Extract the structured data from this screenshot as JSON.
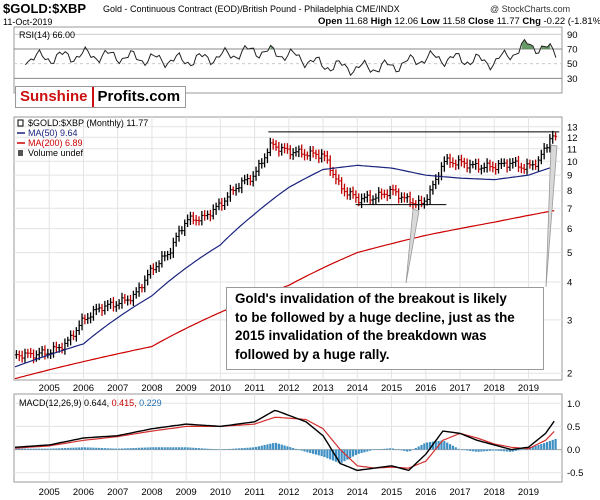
{
  "header": {
    "symbol": "$GOLD:$XBP",
    "description": "Gold - Continuous Contract (EOD)/British Pound - Philadelphia CME/INDX",
    "date": "11-Oct-2019",
    "credit": "@ StockCharts.com",
    "open_label": "Open",
    "open": "11.68",
    "high_label": "High",
    "high": "12.06",
    "low_label": "Low",
    "low": "11.58",
    "close_label": "Close",
    "close": "11.77",
    "chg_label": "Chg",
    "chg": "-0.22 (-1.81%)",
    "chg_arrow": "▼"
  },
  "logo": {
    "part1": "Sunshine",
    "part2": "Profits.com"
  },
  "annotation": {
    "lines": [
      "Gold's invalidation of the breakout is likely",
      "to be followed by a huge decline, just as the",
      "2015 invalidation of the breakdown was",
      "followed by a huge rally."
    ]
  },
  "colors": {
    "price_bar": "#000000",
    "ma50": "#1a237e",
    "ma200": "#cc0000",
    "rsi_fill": "#4e8a4e",
    "macd_hist": "#3d8fc4",
    "macd_signal": "#d32f2f"
  },
  "chart_data": [
    {
      "type": "line",
      "title": "RSI(14) 66.00",
      "series_label": "RSI(14)",
      "series_value": "66.00",
      "yticks": [
        "90",
        "70",
        "50",
        "30"
      ],
      "ylim": [
        10,
        100
      ],
      "x": [
        2005,
        2006,
        2007,
        2008,
        2009,
        2010,
        2011,
        2012,
        2013,
        2014,
        2015,
        2016,
        2017,
        2018,
        2019,
        2019.8
      ],
      "series": [
        {
          "values": [
            58,
            62,
            60,
            56,
            54,
            60,
            68,
            62,
            48,
            44,
            46,
            58,
            56,
            52,
            76,
            66
          ]
        }
      ]
    },
    {
      "type": "bar",
      "legend": [
        {
          "name": "$GOLD:$XBP (Monthly) 11.77",
          "color": "#000000"
        },
        {
          "name": "MA(50) 9.64",
          "color": "#1a237e"
        },
        {
          "name": "MA(200) 6.89",
          "color": "#cc0000"
        },
        {
          "name": "Volume undef",
          "color": "#555555"
        }
      ],
      "yscale": "log",
      "ylim": [
        1.9,
        14
      ],
      "yticks": [
        "13",
        "12",
        "11",
        "10",
        "9",
        "8",
        "7",
        "6",
        "5",
        "4",
        "3",
        "2"
      ],
      "xticks": [
        "2005",
        "2006",
        "2007",
        "2008",
        "2009",
        "2010",
        "2011",
        "2012",
        "2013",
        "2014",
        "2015",
        "2016",
        "2017",
        "2018",
        "2019"
      ],
      "close_path": [
        [
          2004.0,
          2.3
        ],
        [
          2004.5,
          2.3
        ],
        [
          2005.0,
          2.35
        ],
        [
          2005.5,
          2.5
        ],
        [
          2006.0,
          3.0
        ],
        [
          2006.5,
          3.3
        ],
        [
          2007.0,
          3.4
        ],
        [
          2007.5,
          3.6
        ],
        [
          2008.0,
          4.4
        ],
        [
          2008.5,
          5.0
        ],
        [
          2009.0,
          6.4
        ],
        [
          2009.5,
          6.5
        ],
        [
          2010.0,
          7.2
        ],
        [
          2010.5,
          8.3
        ],
        [
          2011.0,
          9.0
        ],
        [
          2011.5,
          11.4
        ],
        [
          2011.75,
          11.0
        ],
        [
          2012.0,
          10.8
        ],
        [
          2012.5,
          10.6
        ],
        [
          2013.0,
          10.5
        ],
        [
          2013.3,
          9.1
        ],
        [
          2013.5,
          8.2
        ],
        [
          2014.0,
          7.5
        ],
        [
          2014.5,
          7.6
        ],
        [
          2015.0,
          8.0
        ],
        [
          2015.5,
          7.4
        ],
        [
          2015.9,
          7.2
        ],
        [
          2016.3,
          8.6
        ],
        [
          2016.5,
          10.0
        ],
        [
          2017.0,
          9.9
        ],
        [
          2017.5,
          9.6
        ],
        [
          2018.0,
          9.6
        ],
        [
          2018.5,
          9.9
        ],
        [
          2018.9,
          9.5
        ],
        [
          2019.3,
          10.0
        ],
        [
          2019.55,
          11.4
        ],
        [
          2019.67,
          12.3
        ],
        [
          2019.78,
          11.77
        ]
      ],
      "ma50": [
        [
          2004.0,
          2.1
        ],
        [
          2006.0,
          2.5
        ],
        [
          2008.0,
          3.6
        ],
        [
          2010.0,
          5.3
        ],
        [
          2011.0,
          6.7
        ],
        [
          2012.0,
          8.2
        ],
        [
          2013.0,
          9.4
        ],
        [
          2014.0,
          9.7
        ],
        [
          2015.0,
          9.5
        ],
        [
          2016.0,
          9.0
        ],
        [
          2017.0,
          8.8
        ],
        [
          2018.0,
          8.7
        ],
        [
          2019.0,
          9.0
        ],
        [
          2019.78,
          9.64
        ]
      ],
      "ma200": [
        [
          2004.0,
          1.92
        ],
        [
          2008.0,
          2.45
        ],
        [
          2012.0,
          3.9
        ],
        [
          2014.0,
          5.0
        ],
        [
          2016.0,
          5.7
        ],
        [
          2018.0,
          6.3
        ],
        [
          2019.78,
          6.89
        ]
      ],
      "resistance_level": 12.5,
      "support_level": 7.2
    },
    {
      "type": "line",
      "title": "MACD(12,26,9) 0.644, 0.415, 0.229",
      "series_label": "MACD(12,26,9)",
      "values_text": [
        "0.644,",
        "0.415,",
        "0.229"
      ],
      "yticks": [
        "1.0",
        "0.5",
        "0.0",
        "-0.5"
      ],
      "ylim": [
        -0.7,
        1.2
      ],
      "xticks": [
        "2005",
        "2006",
        "2007",
        "2008",
        "2009",
        "2010",
        "2011",
        "2012",
        "2013",
        "2014",
        "2015",
        "2016",
        "2017",
        "2018",
        "2019"
      ],
      "x": [
        2004.0,
        2005.0,
        2006.0,
        2007.0,
        2008.0,
        2009.0,
        2010.0,
        2011.0,
        2011.6,
        2012.5,
        2013.0,
        2013.5,
        2014.0,
        2014.5,
        2015.0,
        2015.5,
        2016.0,
        2016.5,
        2017.0,
        2017.5,
        2018.0,
        2018.5,
        2019.0,
        2019.5,
        2019.78
      ],
      "series": [
        {
          "name": "MACD",
          "values": [
            0.05,
            0.1,
            0.25,
            0.3,
            0.45,
            0.55,
            0.5,
            0.6,
            0.85,
            0.6,
            0.3,
            -0.3,
            -0.45,
            -0.4,
            -0.35,
            -0.45,
            -0.1,
            0.4,
            0.35,
            0.2,
            0.1,
            0.0,
            0.05,
            0.35,
            0.644
          ]
        },
        {
          "name": "Signal",
          "values": [
            0.03,
            0.08,
            0.2,
            0.28,
            0.4,
            0.5,
            0.5,
            0.55,
            0.7,
            0.65,
            0.45,
            0.0,
            -0.35,
            -0.4,
            -0.38,
            -0.4,
            -0.25,
            0.2,
            0.35,
            0.25,
            0.12,
            0.05,
            0.02,
            0.2,
            0.415
          ]
        },
        {
          "name": "Histogram",
          "values": [
            0.02,
            0.02,
            0.05,
            0.02,
            0.05,
            0.05,
            0.0,
            0.05,
            0.15,
            -0.05,
            -0.15,
            -0.3,
            -0.1,
            0.0,
            0.03,
            -0.05,
            0.15,
            0.2,
            0.0,
            -0.05,
            -0.02,
            -0.05,
            0.03,
            0.15,
            0.229
          ]
        }
      ]
    }
  ]
}
